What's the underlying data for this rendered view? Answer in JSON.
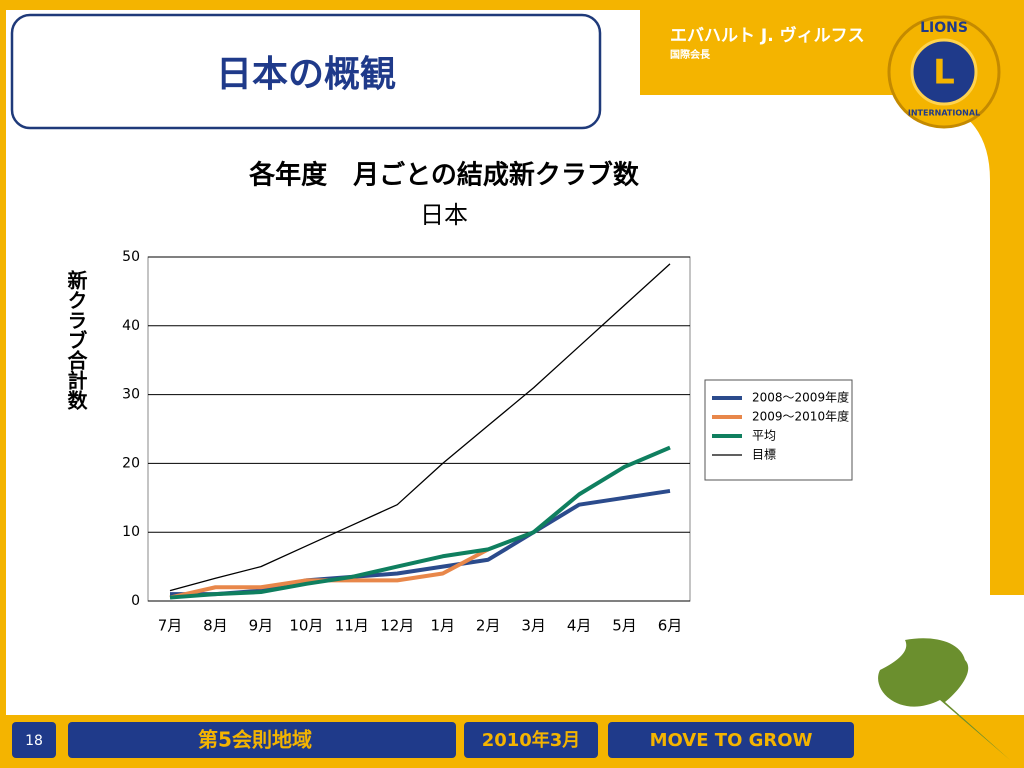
{
  "slide": {
    "title": "日本の概観",
    "presenter": "エバハルト J. ヴィルフス",
    "presenter_role": "国際会長",
    "logo_top": "LIONS",
    "logo_letter": "L",
    "logo_bottom": "INTERNATIONAL",
    "page_number": "18",
    "footer_area": "第5会則地域",
    "footer_date": "2010年3月",
    "footer_slogan": "MOVE TO GROW"
  },
  "chart_data": {
    "type": "line",
    "title": "各年度　月ごとの結成新クラブ数",
    "subtitle": "日本",
    "y_label": "新クラブ合計数",
    "categories": [
      "7月",
      "8月",
      "9月",
      "10月",
      "11月",
      "12月",
      "1月",
      "2月",
      "3月",
      "4月",
      "5月",
      "6月"
    ],
    "series": [
      {
        "name": "2008～2009年度",
        "color": "#2b4b8c",
        "values": [
          1,
          1,
          1.5,
          3,
          3.5,
          4,
          5,
          6,
          10,
          14,
          15,
          16
        ]
      },
      {
        "name": "2009～2010年度",
        "color": "#e8874a",
        "values": [
          0.5,
          2,
          2,
          3,
          3,
          3,
          4,
          7.5,
          null,
          null,
          null,
          null
        ]
      },
      {
        "name": "平均",
        "color": "#0f7f5f",
        "values": [
          0.5,
          1,
          1.3,
          2.5,
          3.5,
          5,
          6.5,
          7.5,
          10,
          15.5,
          19.5,
          22.3
        ]
      },
      {
        "name": "目標",
        "color": "#000000",
        "values": [
          1.5,
          3.3,
          5,
          8,
          11,
          14,
          20,
          25.5,
          31,
          37,
          43,
          49
        ]
      }
    ],
    "ylim": [
      0,
      50
    ],
    "yticks": [
      0,
      10,
      20,
      30,
      40,
      50
    ],
    "grid": true,
    "legend": "right"
  }
}
